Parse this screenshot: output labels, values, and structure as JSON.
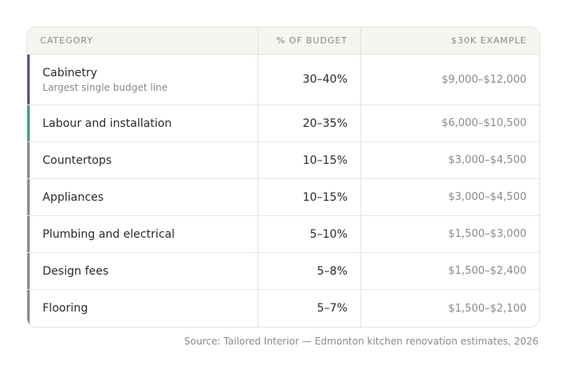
{
  "table": {
    "headers": {
      "category": "CATEGORY",
      "percent": "% OF BUDGET",
      "example": "$30K EXAMPLE"
    },
    "accent_colors": {
      "cabinetry": "#5a4e9a",
      "labour": "#3f9c86",
      "default": "#888884"
    },
    "rows": [
      {
        "category": "Cabinetry",
        "note": "Largest single budget line",
        "percent": "30–40%",
        "example": "$9,000–$12,000"
      },
      {
        "category": "Labour and installation",
        "percent": "20–35%",
        "example": "$6,000–$10,500"
      },
      {
        "category": "Countertops",
        "percent": "10–15%",
        "example": "$3,000–$4,500"
      },
      {
        "category": "Appliances",
        "percent": "10–15%",
        "example": "$3,000–$4,500"
      },
      {
        "category": "Plumbing and electrical",
        "percent": "5–10%",
        "example": "$1,500–$3,000"
      },
      {
        "category": "Design fees",
        "percent": "5–8%",
        "example": "$1,500–$2,400"
      },
      {
        "category": "Flooring",
        "percent": "5–7%",
        "example": "$1,500–$2,100"
      }
    ]
  },
  "source": "Source: Tailored Interior — Edmonton kitchen renovation estimates, 2026"
}
